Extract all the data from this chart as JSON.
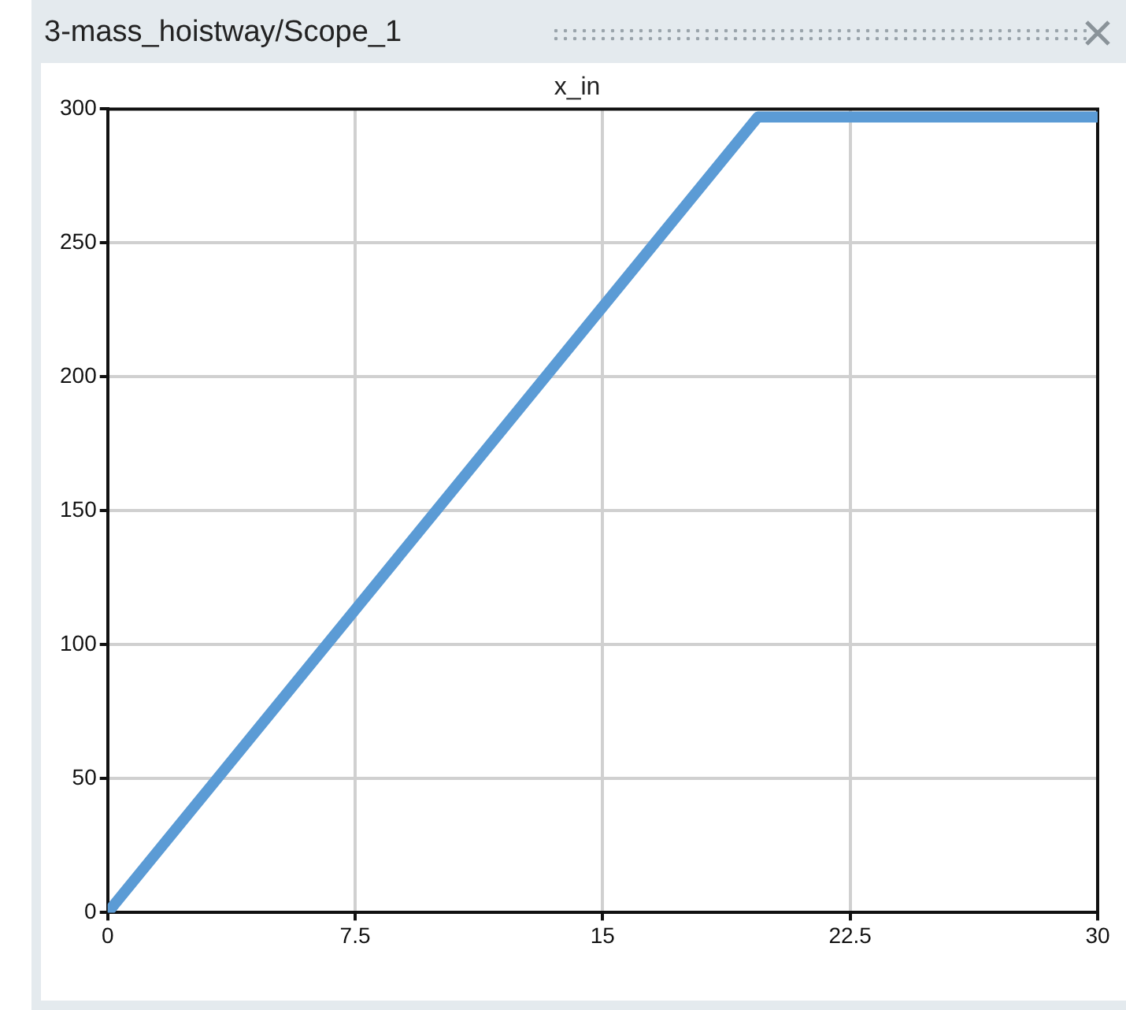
{
  "chart_data": {
    "type": "line",
    "title": "3-mass_hoistway/Scope_1",
    "subtitle": "x_in",
    "x": [
      0,
      19.7,
      30
    ],
    "series": [
      {
        "color": "#5b9bd5",
        "values": [
          0,
          297,
          297
        ]
      }
    ],
    "xlim": [
      0,
      30
    ],
    "xticks": [
      0,
      7.5,
      15,
      22.5,
      30
    ],
    "ylim": [
      0,
      300
    ],
    "yticks": [
      0,
      50,
      100,
      150,
      200,
      250,
      300
    ],
    "grid": true,
    "legend": false,
    "marker": "none",
    "line_style": "solid"
  }
}
